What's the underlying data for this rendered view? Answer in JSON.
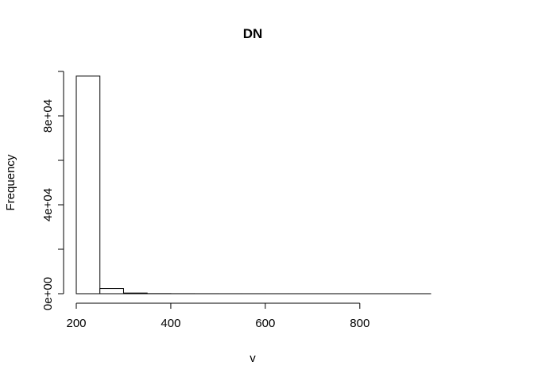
{
  "chart_data": {
    "type": "bar",
    "title": "DN",
    "xlabel": "v",
    "ylabel": "Frequency",
    "bins": [
      {
        "x0": 200,
        "x1": 250,
        "count": 97900
      },
      {
        "x0": 250,
        "x1": 300,
        "count": 2300
      },
      {
        "x0": 300,
        "x1": 350,
        "count": 300
      },
      {
        "x0": 350,
        "x1": 400,
        "count": 50
      },
      {
        "x0": 400,
        "x1": 450,
        "count": 20
      },
      {
        "x0": 450,
        "x1": 500,
        "count": 10
      },
      {
        "x0": 500,
        "x1": 550,
        "count": 5
      },
      {
        "x0": 550,
        "x1": 600,
        "count": 3
      },
      {
        "x0": 600,
        "x1": 650,
        "count": 2
      },
      {
        "x0": 650,
        "x1": 700,
        "count": 1
      },
      {
        "x0": 700,
        "x1": 750,
        "count": 1
      },
      {
        "x0": 750,
        "x1": 800,
        "count": 1
      },
      {
        "x0": 800,
        "x1": 850,
        "count": 1
      },
      {
        "x0": 850,
        "x1": 900,
        "count": 1
      },
      {
        "x0": 900,
        "x1": 950,
        "count": 1
      }
    ],
    "xlim": [
      200,
      950
    ],
    "ylim": [
      0,
      100000
    ],
    "x_ticks": [
      200,
      400,
      600,
      800
    ],
    "x_tick_labels": [
      "200",
      "400",
      "600",
      "800"
    ],
    "y_ticks": [
      0,
      20000,
      40000,
      60000,
      80000,
      100000
    ],
    "y_tick_labels": [
      "0e+00",
      "",
      "4e+04",
      "",
      "8e+04",
      ""
    ],
    "grid": false,
    "legend": "none"
  }
}
